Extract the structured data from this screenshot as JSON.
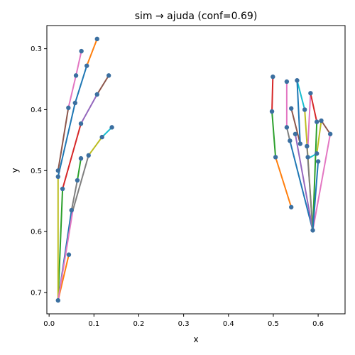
{
  "chart_data": {
    "type": "line",
    "title": "sim → ajuda (conf=0.69)",
    "xlabel": "x",
    "ylabel": "y",
    "xlim": [
      -0.005,
      0.66
    ],
    "ylim": [
      0.735,
      0.262
    ],
    "y_inverted": true,
    "grid": false,
    "x_ticks": [
      0.0,
      0.1,
      0.2,
      0.3,
      0.4,
      0.5,
      0.6
    ],
    "x_tick_labels": [
      "0.0",
      "0.1",
      "0.2",
      "0.3",
      "0.4",
      "0.5",
      "0.6"
    ],
    "y_ticks": [
      0.3,
      0.4,
      0.5,
      0.6,
      0.7
    ],
    "y_tick_labels": [
      "0.3",
      "0.4",
      "0.5",
      "0.6",
      "0.7"
    ],
    "point_color": "#3b6fa0",
    "colors": [
      "#1f77b4",
      "#ff7f0e",
      "#2ca02c",
      "#d62728",
      "#9467bd",
      "#8c564b",
      "#e377c2",
      "#7f7f7f",
      "#bcbd22",
      "#17becf"
    ],
    "segments": [
      {
        "color": "#1f77b4",
        "x": [
          0.02,
          0.05
        ],
        "y": [
          0.713,
          0.565
        ]
      },
      {
        "color": "#ff7f0e",
        "x": [
          0.02,
          0.044
        ],
        "y": [
          0.713,
          0.638
        ]
      },
      {
        "color": "#2ca02c",
        "x": [
          0.02,
          0.03
        ],
        "y": [
          0.713,
          0.53
        ]
      },
      {
        "color": "#bcbd22",
        "x": [
          0.02,
          0.02
        ],
        "y": [
          0.713,
          0.51
        ]
      },
      {
        "color": "#e377c2",
        "x": [
          0.02,
          0.053
        ],
        "y": [
          0.713,
          0.565
        ]
      },
      {
        "color": "#1f77b4",
        "x": [
          0.02,
          0.058
        ],
        "y": [
          0.51,
          0.389
        ]
      },
      {
        "color": "#1f77b4",
        "x": [
          0.058,
          0.084
        ],
        "y": [
          0.389,
          0.328
        ]
      },
      {
        "color": "#ff7f0e",
        "x": [
          0.084,
          0.107
        ],
        "y": [
          0.328,
          0.284
        ]
      },
      {
        "color": "#8c564b",
        "x": [
          0.02,
          0.043
        ],
        "y": [
          0.5,
          0.397
        ]
      },
      {
        "color": "#e377c2",
        "x": [
          0.043,
          0.06
        ],
        "y": [
          0.397,
          0.344
        ]
      },
      {
        "color": "#e377c2",
        "x": [
          0.06,
          0.072
        ],
        "y": [
          0.344,
          0.304
        ]
      },
      {
        "color": "#d62728",
        "x": [
          0.03,
          0.071
        ],
        "y": [
          0.53,
          0.423
        ]
      },
      {
        "color": "#9467bd",
        "x": [
          0.071,
          0.107
        ],
        "y": [
          0.423,
          0.375
        ]
      },
      {
        "color": "#8c564b",
        "x": [
          0.107,
          0.133
        ],
        "y": [
          0.375,
          0.344
        ]
      },
      {
        "color": "#7f7f7f",
        "x": [
          0.05,
          0.063
        ],
        "y": [
          0.565,
          0.516
        ]
      },
      {
        "color": "#2ca02c",
        "x": [
          0.063,
          0.071
        ],
        "y": [
          0.516,
          0.48
        ]
      },
      {
        "color": "#7f7f7f",
        "x": [
          0.053,
          0.088
        ],
        "y": [
          0.565,
          0.475
        ]
      },
      {
        "color": "#bcbd22",
        "x": [
          0.088,
          0.118
        ],
        "y": [
          0.475,
          0.445
        ]
      },
      {
        "color": "#17becf",
        "x": [
          0.118,
          0.14
        ],
        "y": [
          0.445,
          0.429
        ]
      },
      {
        "color": "#d62728",
        "x": [
          0.499,
          0.497
        ],
        "y": [
          0.346,
          0.403
        ]
      },
      {
        "color": "#2ca02c",
        "x": [
          0.497,
          0.505
        ],
        "y": [
          0.403,
          0.478
        ]
      },
      {
        "color": "#ff7f0e",
        "x": [
          0.505,
          0.54
        ],
        "y": [
          0.478,
          0.56
        ]
      },
      {
        "color": "#e377c2",
        "x": [
          0.53,
          0.53
        ],
        "y": [
          0.354,
          0.429
        ]
      },
      {
        "color": "#7f7f7f",
        "x": [
          0.53,
          0.537
        ],
        "y": [
          0.429,
          0.451
        ]
      },
      {
        "color": "#1f77b4",
        "x": [
          0.537,
          0.588
        ],
        "y": [
          0.451,
          0.598
        ]
      },
      {
        "color": "#8c564b",
        "x": [
          0.54,
          0.56
        ],
        "y": [
          0.398,
          0.456
        ]
      },
      {
        "color": "#9467bd",
        "x": [
          0.549,
          0.588
        ],
        "y": [
          0.44,
          0.598
        ]
      },
      {
        "color": "#17becf",
        "x": [
          0.553,
          0.57
        ],
        "y": [
          0.352,
          0.4
        ]
      },
      {
        "color": "#bcbd22",
        "x": [
          0.57,
          0.588
        ],
        "y": [
          0.4,
          0.598
        ]
      },
      {
        "color": "#1f77b4",
        "x": [
          0.553,
          0.56
        ],
        "y": [
          0.352,
          0.456
        ]
      },
      {
        "color": "#7f7f7f",
        "x": [
          0.575,
          0.588
        ],
        "y": [
          0.46,
          0.598
        ]
      },
      {
        "color": "#e377c2",
        "x": [
          0.583,
          0.577
        ],
        "y": [
          0.373,
          0.46
        ]
      },
      {
        "color": "#d62728",
        "x": [
          0.583,
          0.597
        ],
        "y": [
          0.373,
          0.42
        ]
      },
      {
        "color": "#2ca02c",
        "x": [
          0.597,
          0.588
        ],
        "y": [
          0.42,
          0.598
        ]
      },
      {
        "color": "#ff7f0e",
        "x": [
          0.597,
          0.607
        ],
        "y": [
          0.42,
          0.418
        ]
      },
      {
        "color": "#8c564b",
        "x": [
          0.607,
          0.627
        ],
        "y": [
          0.418,
          0.44
        ]
      },
      {
        "color": "#bcbd22",
        "x": [
          0.607,
          0.597
        ],
        "y": [
          0.418,
          0.472
        ]
      },
      {
        "color": "#17becf",
        "x": [
          0.597,
          0.583
        ],
        "y": [
          0.472,
          0.478
        ]
      },
      {
        "color": "#e377c2",
        "x": [
          0.627,
          0.588
        ],
        "y": [
          0.44,
          0.598
        ]
      },
      {
        "color": "#1f77b4",
        "x": [
          0.588,
          0.6
        ],
        "y": [
          0.598,
          0.485
        ]
      }
    ],
    "points": [
      {
        "x": 0.02,
        "y": 0.713
      },
      {
        "x": 0.044,
        "y": 0.638
      },
      {
        "x": 0.05,
        "y": 0.565
      },
      {
        "x": 0.03,
        "y": 0.53
      },
      {
        "x": 0.02,
        "y": 0.51
      },
      {
        "x": 0.02,
        "y": 0.5
      },
      {
        "x": 0.063,
        "y": 0.516
      },
      {
        "x": 0.071,
        "y": 0.48
      },
      {
        "x": 0.088,
        "y": 0.475
      },
      {
        "x": 0.118,
        "y": 0.445
      },
      {
        "x": 0.14,
        "y": 0.429
      },
      {
        "x": 0.071,
        "y": 0.423
      },
      {
        "x": 0.043,
        "y": 0.397
      },
      {
        "x": 0.058,
        "y": 0.389
      },
      {
        "x": 0.107,
        "y": 0.375
      },
      {
        "x": 0.06,
        "y": 0.344
      },
      {
        "x": 0.133,
        "y": 0.344
      },
      {
        "x": 0.084,
        "y": 0.328
      },
      {
        "x": 0.072,
        "y": 0.304
      },
      {
        "x": 0.107,
        "y": 0.284
      },
      {
        "x": 0.499,
        "y": 0.346
      },
      {
        "x": 0.497,
        "y": 0.403
      },
      {
        "x": 0.505,
        "y": 0.478
      },
      {
        "x": 0.54,
        "y": 0.56
      },
      {
        "x": 0.53,
        "y": 0.354
      },
      {
        "x": 0.53,
        "y": 0.429
      },
      {
        "x": 0.537,
        "y": 0.451
      },
      {
        "x": 0.54,
        "y": 0.398
      },
      {
        "x": 0.549,
        "y": 0.44
      },
      {
        "x": 0.553,
        "y": 0.352
      },
      {
        "x": 0.56,
        "y": 0.456
      },
      {
        "x": 0.57,
        "y": 0.4
      },
      {
        "x": 0.575,
        "y": 0.46
      },
      {
        "x": 0.583,
        "y": 0.373
      },
      {
        "x": 0.577,
        "y": 0.478
      },
      {
        "x": 0.597,
        "y": 0.42
      },
      {
        "x": 0.607,
        "y": 0.418
      },
      {
        "x": 0.627,
        "y": 0.44
      },
      {
        "x": 0.597,
        "y": 0.472
      },
      {
        "x": 0.6,
        "y": 0.485
      },
      {
        "x": 0.588,
        "y": 0.598
      }
    ]
  }
}
